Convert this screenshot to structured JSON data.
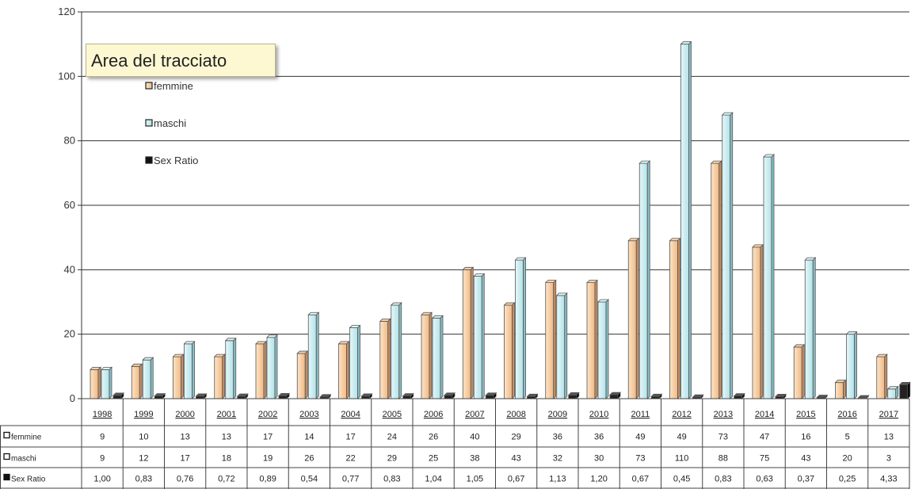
{
  "tooltip": {
    "text": "Area del tracciato"
  },
  "colors": {
    "femmine": "#f5c79a",
    "maschi": "#c7ecf0",
    "sex_ratio": "#111111",
    "gridline": "#333333"
  },
  "chart_data": {
    "type": "bar",
    "categories": [
      "1998",
      "1999",
      "2000",
      "2001",
      "2002",
      "2003",
      "2004",
      "2005",
      "2006",
      "2007",
      "2008",
      "2009",
      "2010",
      "2011",
      "2012",
      "2013",
      "2014",
      "2015",
      "2016",
      "2017"
    ],
    "series": [
      {
        "name": "femmine",
        "values": [
          9,
          10,
          13,
          13,
          17,
          14,
          17,
          24,
          26,
          40,
          29,
          36,
          36,
          49,
          49,
          73,
          47,
          16,
          5,
          13
        ],
        "labels": [
          "9",
          "10",
          "13",
          "13",
          "17",
          "14",
          "17",
          "24",
          "26",
          "40",
          "29",
          "36",
          "36",
          "49",
          "49",
          "73",
          "47",
          "16",
          "5",
          "13"
        ]
      },
      {
        "name": "maschi",
        "values": [
          9,
          12,
          17,
          18,
          19,
          26,
          22,
          29,
          25,
          38,
          43,
          32,
          30,
          73,
          110,
          88,
          75,
          43,
          20,
          3
        ],
        "labels": [
          "9",
          "12",
          "17",
          "18",
          "19",
          "26",
          "22",
          "29",
          "25",
          "38",
          "43",
          "32",
          "30",
          "73",
          "110",
          "88",
          "75",
          "43",
          "20",
          "3"
        ]
      },
      {
        "name": "Sex Ratio",
        "values": [
          1.0,
          0.83,
          0.76,
          0.72,
          0.89,
          0.54,
          0.77,
          0.83,
          1.04,
          1.05,
          0.67,
          1.13,
          1.2,
          0.67,
          0.45,
          0.83,
          0.63,
          0.37,
          0.25,
          4.33
        ],
        "labels": [
          "1,00",
          "0,83",
          "0,76",
          "0,72",
          "0,89",
          "0,54",
          "0,77",
          "0,83",
          "1,04",
          "1,05",
          "0,67",
          "1,13",
          "1,20",
          "0,67",
          "0,45",
          "0,83",
          "0,63",
          "0,37",
          "0,25",
          "4,33"
        ]
      }
    ],
    "yticks": [
      "0",
      "20",
      "40",
      "60",
      "80",
      "100",
      "120"
    ],
    "ylim": [
      0,
      120
    ],
    "grid": true,
    "legend": "top-left",
    "data_table": true,
    "title": "",
    "xlabel": "",
    "ylabel": ""
  }
}
